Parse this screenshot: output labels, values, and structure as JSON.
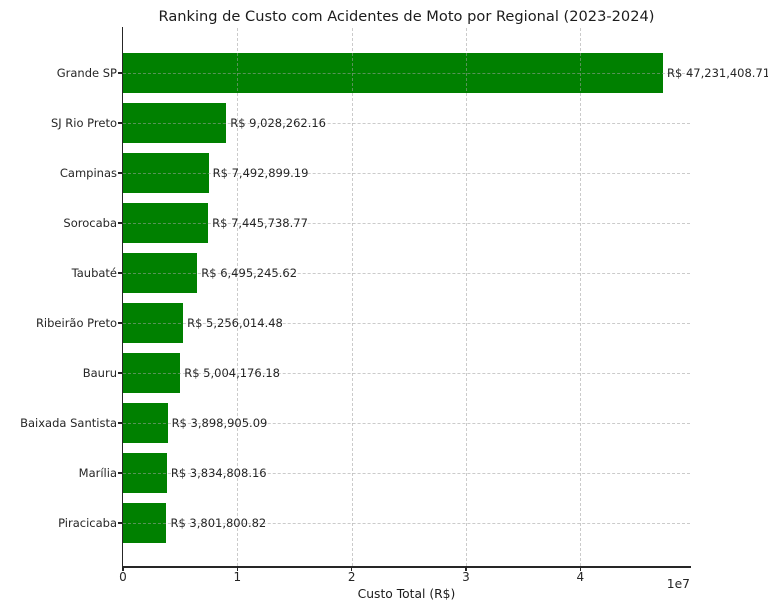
{
  "chart_data": {
    "type": "bar",
    "orientation": "horizontal",
    "title": "Ranking de Custo com Acidentes de Moto por Regional (2023-2024)",
    "xlabel": "Custo Total (R$)",
    "ylabel": "",
    "x_offset_text": "1e7",
    "categories": [
      "Grande SP",
      "SJ Rio Preto",
      "Campinas",
      "Sorocaba",
      "Taubaté",
      "Ribeirão Preto",
      "Bauru",
      "Baixada Santista",
      "Marília",
      "Piracicaba"
    ],
    "values": [
      47231408.71,
      9028262.16,
      7492899.19,
      7445738.77,
      6495245.62,
      5256014.48,
      5004176.18,
      3898905.09,
      3834808.16,
      3801800.82
    ],
    "value_labels": [
      "R$ 47,231,408.71",
      "R$ 9,028,262.16",
      "R$ 7,492,899.19",
      "R$ 7,445,738.77",
      "R$ 6,495,245.62",
      "R$ 5,256,014.48",
      "R$ 5,004,176.18",
      "R$ 3,898,905.09",
      "R$ 3,834,808.16",
      "R$ 3,801,800.82"
    ],
    "xlim": [
      0,
      49592979
    ],
    "x_tick_values": [
      0,
      10000000,
      20000000,
      30000000,
      40000000
    ],
    "x_tick_labels": [
      "0",
      "1",
      "2",
      "3",
      "4"
    ],
    "bar_color": "#008000",
    "grid": true,
    "grid_axis": "both",
    "grid_style": "dashed",
    "legend_position": "none",
    "background_color": "#ffffff"
  }
}
